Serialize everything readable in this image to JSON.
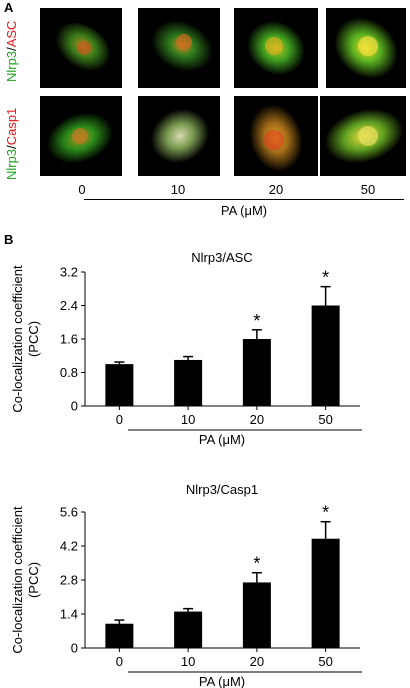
{
  "panelA": {
    "letter": "A",
    "row1_label": {
      "green": "Nlrp3",
      "slash": "/",
      "red": "ASC"
    },
    "row2_label": {
      "green": "Nlrp3",
      "slash": "/",
      "red": "Casp1"
    },
    "concentrations": [
      "0",
      "10",
      "20",
      "50"
    ],
    "xlabel": "PA (μM)",
    "colors": {
      "green_label": "#1ea01e",
      "red_label": "#e01a1a"
    }
  },
  "panelB": {
    "letter": "B"
  },
  "chart_data": [
    {
      "type": "bar",
      "title": "Nlrp3/ASC",
      "ylabel_line1": "Co-localization coefficient",
      "ylabel_line2": "(PCC)",
      "xlabel": "PA (μM)",
      "categories": [
        "0",
        "10",
        "20",
        "50"
      ],
      "values": [
        1.0,
        1.1,
        1.6,
        2.4
      ],
      "errors": [
        0.05,
        0.08,
        0.22,
        0.45
      ],
      "significant": [
        false,
        false,
        true,
        true
      ],
      "sig_marker": "*",
      "yticks": [
        "0",
        "0.8",
        "1.6",
        "2.4",
        "3.2"
      ],
      "ylim": [
        0,
        3.2
      ],
      "bar_color": "#000000"
    },
    {
      "type": "bar",
      "title": "Nlrp3/Casp1",
      "ylabel_line1": "Co-localization coefficient",
      "ylabel_line2": "(PCC)",
      "xlabel": "PA (μM)",
      "categories": [
        "0",
        "10",
        "20",
        "50"
      ],
      "values": [
        1.0,
        1.5,
        2.7,
        4.5
      ],
      "errors": [
        0.15,
        0.12,
        0.4,
        0.7
      ],
      "significant": [
        false,
        false,
        true,
        true
      ],
      "sig_marker": "*",
      "yticks": [
        "0",
        "1.4",
        "2.8",
        "4.2",
        "5.6"
      ],
      "ylim": [
        0,
        5.6
      ],
      "bar_color": "#000000"
    }
  ]
}
